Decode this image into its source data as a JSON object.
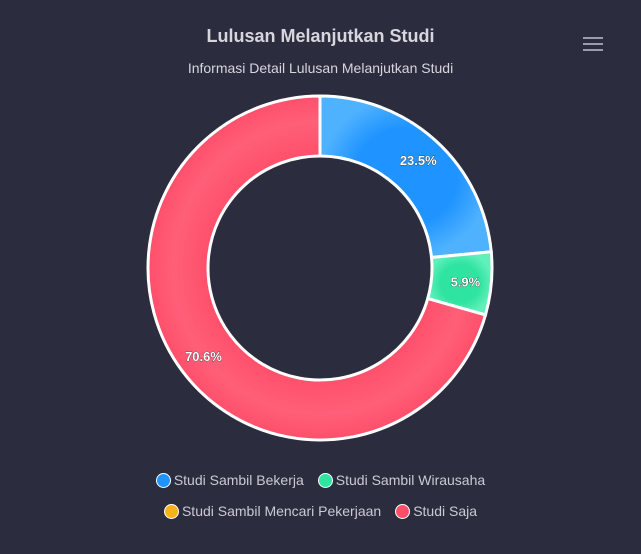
{
  "chart_data": {
    "type": "pie",
    "title": "Lulusan Melanjutkan Studi",
    "subtitle": "Informasi Detail Lulusan Melanjutkan Studi",
    "categories": [
      "Studi Sambil Bekerja",
      "Studi Sambil Wirausaha",
      "Studi Sambil Mencari Pekerjaan",
      "Studi Saja"
    ],
    "values": [
      23.5,
      5.9,
      0,
      70.6
    ],
    "data_labels": [
      "23.5%",
      "5.9%",
      "",
      "70.6%"
    ],
    "colors": [
      "#1f93ff",
      "#2fe3a0",
      "#f7b21b",
      "#ff4f6b"
    ],
    "donut": true,
    "legend_position": "bottom"
  },
  "toolbar": {
    "menu_icon": "hamburger-menu-icon"
  }
}
